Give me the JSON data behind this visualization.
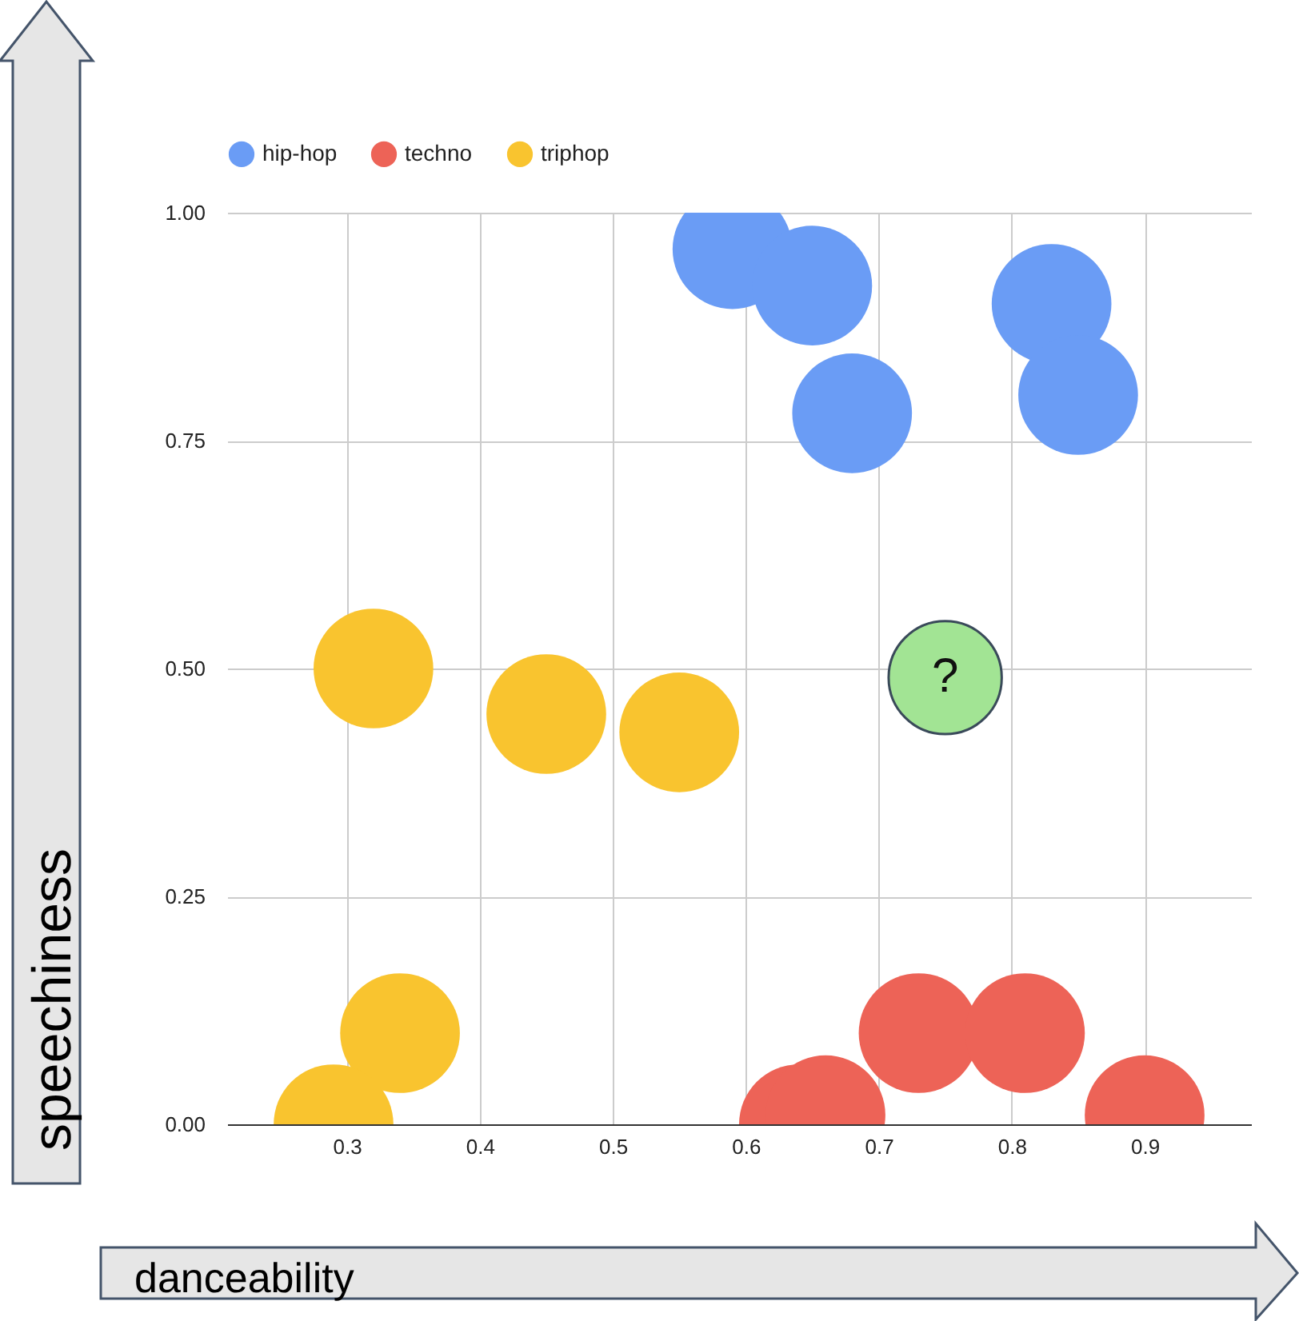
{
  "chart_data": {
    "type": "scatter",
    "xlabel": "danceability",
    "ylabel": "speechiness",
    "xlim": [
      0.21,
      0.98
    ],
    "xticks": [
      0.3,
      0.4,
      0.5,
      0.6,
      0.7,
      0.8,
      0.9
    ],
    "ylim": [
      0,
      1
    ],
    "yticks": [
      {
        "value": 0,
        "label": "0.00"
      },
      {
        "value": 0.25,
        "label": "0.25"
      },
      {
        "value": 0.5,
        "label": "0.50"
      },
      {
        "value": 0.75,
        "label": "0.75"
      },
      {
        "value": 1,
        "label": "1.00"
      }
    ],
    "grid": true,
    "legend": "top",
    "marker": "circle",
    "series": [
      {
        "name": "hip-hop",
        "color": "#6a9cf5",
        "x": [
          0.59,
          0.65,
          0.68,
          0.83,
          0.85
        ],
        "values": [
          0.96,
          0.92,
          0.78,
          0.9,
          0.8
        ]
      },
      {
        "name": "techno",
        "color": "#ed6357",
        "x": [
          0.64,
          0.66,
          0.73,
          0.81,
          0.9
        ],
        "values": [
          0.0,
          0.01,
          0.1,
          0.1,
          0.01
        ]
      },
      {
        "name": "triphop",
        "color": "#f9c42f",
        "x": [
          0.32,
          0.45,
          0.55,
          0.34,
          0.29
        ],
        "values": [
          0.5,
          0.45,
          0.43,
          0.1,
          0.0
        ]
      },
      {
        "color": "#a2e494",
        "x": [
          0.75
        ],
        "values": [
          0.49
        ]
      }
    ],
    "annotations": [
      {
        "text": "?",
        "x": 0.75,
        "y": 0.49
      }
    ]
  }
}
